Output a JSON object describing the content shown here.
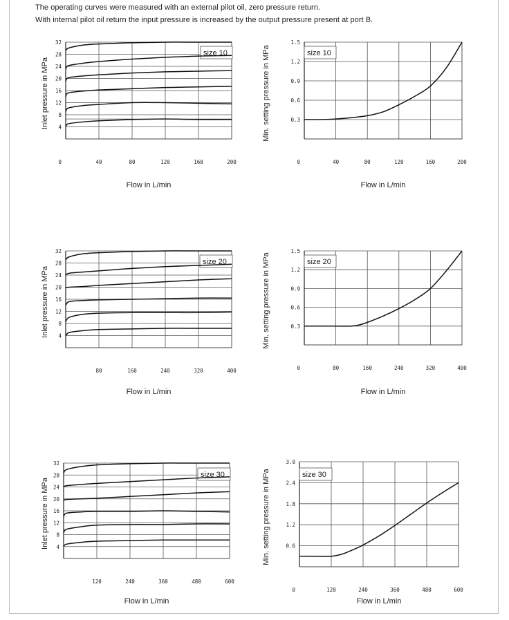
{
  "intro": {
    "line1": "The operating curves were measured with an external pilot oil, zero pressure return.",
    "line2": "With internal pilot oil return the input pressure is increased by the output pressure present at port B."
  },
  "chart_data": [
    {
      "type": "line",
      "title": "size 10",
      "xlabel": "Flow in L/min",
      "ylabel": "Inlet pressure in MPa",
      "xlim": [
        0,
        200
      ],
      "ylim": [
        0,
        32
      ],
      "xticks": [
        0,
        40,
        80,
        120,
        160,
        200
      ],
      "yticks": [
        0,
        4,
        8,
        12,
        16,
        20,
        24,
        28,
        32
      ],
      "xtick_labels": [
        "0",
        "40",
        "80",
        "120",
        "160",
        "200"
      ],
      "ytick_labels": [
        "0",
        "4",
        "8",
        "12",
        "16",
        "20",
        "24",
        "28",
        "32"
      ],
      "grid_x": [
        40,
        80,
        120,
        160
      ],
      "grid_y": [
        4,
        6.6,
        8,
        12,
        16,
        20,
        24,
        28,
        32
      ],
      "series": [
        {
          "x": [
            0,
            3,
            20,
            40,
            80,
            120,
            160,
            200
          ],
          "y": [
            29.0,
            30.0,
            31.0,
            31.4,
            31.8,
            32.0,
            32.0,
            32.0
          ]
        },
        {
          "x": [
            0,
            3,
            20,
            40,
            80,
            120,
            160,
            200
          ],
          "y": [
            23.0,
            24.2,
            25.0,
            25.6,
            26.4,
            27.0,
            27.4,
            27.6
          ]
        },
        {
          "x": [
            0,
            3,
            20,
            40,
            80,
            120,
            160,
            200
          ],
          "y": [
            19.0,
            20.2,
            20.8,
            21.2,
            21.8,
            22.2,
            22.4,
            22.6
          ]
        },
        {
          "x": [
            0,
            3,
            20,
            40,
            80,
            120,
            160,
            200
          ],
          "y": [
            14.0,
            15.2,
            15.8,
            16.2,
            16.6,
            17.0,
            17.2,
            17.4
          ]
        },
        {
          "x": [
            0,
            3,
            20,
            40,
            80,
            120,
            160,
            200
          ],
          "y": [
            9.0,
            10.2,
            11.0,
            11.4,
            12.0,
            12.0,
            11.8,
            11.6
          ]
        },
        {
          "x": [
            0,
            3,
            20,
            40,
            80,
            120,
            160,
            200
          ],
          "y": [
            4.0,
            5.0,
            5.6,
            6.0,
            6.4,
            6.6,
            6.4,
            6.4
          ]
        }
      ]
    },
    {
      "type": "line",
      "title": "size 10",
      "xlabel": "Flow in L/min",
      "ylabel": "Min. setting pressure in MPa",
      "xlim": [
        0,
        200
      ],
      "ylim": [
        0,
        1.5
      ],
      "xticks": [
        0,
        40,
        80,
        120,
        160,
        200
      ],
      "yticks": [
        0,
        0.3,
        0.6,
        0.9,
        1.2,
        1.5
      ],
      "xtick_labels": [
        "0",
        "40",
        "80",
        "120",
        "160",
        "200"
      ],
      "ytick_labels": [
        "0",
        "0.3",
        "0.6",
        "0.9",
        "1.2",
        "1.5"
      ],
      "grid_x": [
        40,
        80,
        120,
        160
      ],
      "grid_y": [
        0.3,
        0.6,
        0.9,
        1.2,
        1.5
      ],
      "series": [
        {
          "x": [
            0,
            20,
            40,
            60,
            80,
            100,
            120,
            140,
            160,
            180,
            200
          ],
          "y": [
            0.3,
            0.3,
            0.31,
            0.33,
            0.36,
            0.42,
            0.53,
            0.66,
            0.82,
            1.1,
            1.5
          ]
        }
      ]
    },
    {
      "type": "line",
      "title": "size 20",
      "xlabel": "Flow in L/min",
      "ylabel": "Inlet pressure in MPa",
      "xlim": [
        0,
        400
      ],
      "ylim": [
        0,
        32
      ],
      "xticks": [
        0,
        80,
        160,
        240,
        320,
        400
      ],
      "yticks": [
        4,
        8,
        12,
        16,
        20,
        24,
        28,
        32
      ],
      "xtick_labels": [
        "0",
        "80",
        "160",
        "240",
        "320",
        "400"
      ],
      "ytick_labels": [
        "4",
        "8",
        "12",
        "16",
        "20",
        "24",
        "28",
        "32"
      ],
      "grid_x": [
        80,
        160,
        240,
        320
      ],
      "grid_y": [
        4,
        8,
        12,
        16,
        20,
        24,
        28,
        32
      ],
      "series": [
        {
          "x": [
            0,
            8,
            40,
            80,
            160,
            240,
            320,
            400
          ],
          "y": [
            29.0,
            30.0,
            31.0,
            31.4,
            31.8,
            32.0,
            32.0,
            32.0
          ]
        },
        {
          "x": [
            0,
            8,
            40,
            80,
            160,
            240,
            320,
            400
          ],
          "y": [
            24.0,
            24.6,
            25.0,
            25.4,
            26.2,
            26.8,
            27.2,
            27.6
          ]
        },
        {
          "x": [
            0,
            8,
            40,
            80,
            160,
            240,
            320,
            400
          ],
          "y": [
            19.8,
            20.0,
            20.2,
            20.6,
            21.2,
            21.8,
            22.4,
            22.8
          ]
        },
        {
          "x": [
            0,
            8,
            40,
            80,
            160,
            240,
            320,
            400
          ],
          "y": [
            14.0,
            15.2,
            15.6,
            15.8,
            16.0,
            16.2,
            16.4,
            16.4
          ]
        },
        {
          "x": [
            0,
            8,
            40,
            80,
            160,
            240,
            320,
            400
          ],
          "y": [
            8.6,
            10.0,
            11.0,
            11.4,
            11.6,
            11.6,
            11.6,
            11.8
          ]
        },
        {
          "x": [
            0,
            8,
            40,
            80,
            160,
            240,
            320,
            400
          ],
          "y": [
            3.8,
            5.0,
            5.6,
            6.0,
            6.2,
            6.4,
            6.4,
            6.4
          ]
        }
      ]
    },
    {
      "type": "line",
      "title": "size 20",
      "xlabel": "Flow in L/min",
      "ylabel": "Min. setting pressure in MPa",
      "xlim": [
        0,
        400
      ],
      "ylim": [
        0,
        1.5
      ],
      "xticks": [
        0,
        80,
        160,
        240,
        320,
        400
      ],
      "yticks": [
        0,
        0.3,
        0.6,
        0.9,
        1.2,
        1.5
      ],
      "xtick_labels": [
        "0",
        "80",
        "160",
        "240",
        "320",
        "400"
      ],
      "ytick_labels": [
        "0",
        "0.3",
        "0.6",
        "0.9",
        "1.2",
        "1.5"
      ],
      "grid_x": [
        80,
        160,
        240,
        320
      ],
      "grid_y": [
        0.3,
        0.6,
        0.9,
        1.2,
        1.5
      ],
      "series": [
        {
          "x": [
            0,
            40,
            80,
            120,
            140,
            160,
            200,
            240,
            280,
            320,
            360,
            400
          ],
          "y": [
            0.3,
            0.3,
            0.3,
            0.3,
            0.32,
            0.36,
            0.46,
            0.58,
            0.72,
            0.9,
            1.18,
            1.5
          ]
        }
      ]
    },
    {
      "type": "line",
      "title": "size 30",
      "xlabel": "Flow in L/min",
      "ylabel": "Inlet pressure in MPa",
      "xlim": [
        0,
        600
      ],
      "ylim": [
        0,
        32
      ],
      "xticks": [
        0,
        120,
        240,
        360,
        480,
        600
      ],
      "yticks": [
        4,
        8,
        12,
        16,
        20,
        24,
        28,
        32
      ],
      "xtick_labels": [
        "0",
        "120",
        "240",
        "360",
        "480",
        "600"
      ],
      "ytick_labels": [
        "4",
        "8",
        "12",
        "16",
        "20",
        "24",
        "28",
        "32"
      ],
      "grid_x": [
        120,
        240,
        360,
        480
      ],
      "grid_y": [
        4,
        8,
        12,
        16,
        20,
        24,
        28,
        32
      ],
      "series": [
        {
          "x": [
            0,
            10,
            60,
            120,
            240,
            360,
            480,
            600
          ],
          "y": [
            28.6,
            29.8,
            30.8,
            31.4,
            31.8,
            32.0,
            32.0,
            32.0
          ]
        },
        {
          "x": [
            0,
            10,
            60,
            120,
            240,
            360,
            480,
            600
          ],
          "y": [
            24.0,
            24.4,
            24.8,
            25.2,
            25.8,
            26.4,
            27.0,
            27.4
          ]
        },
        {
          "x": [
            0,
            10,
            60,
            120,
            240,
            360,
            480,
            600
          ],
          "y": [
            19.4,
            19.8,
            20.0,
            20.2,
            20.8,
            21.4,
            22.0,
            22.4
          ]
        },
        {
          "x": [
            0,
            10,
            60,
            120,
            240,
            360,
            480,
            600
          ],
          "y": [
            14.0,
            15.2,
            15.6,
            15.8,
            15.8,
            16.0,
            15.8,
            15.6
          ]
        },
        {
          "x": [
            0,
            10,
            60,
            120,
            240,
            360,
            480,
            600
          ],
          "y": [
            8.6,
            9.8,
            10.6,
            11.2,
            11.4,
            11.4,
            11.6,
            11.6
          ]
        },
        {
          "x": [
            0,
            10,
            60,
            120,
            240,
            360,
            480,
            600
          ],
          "y": [
            4.0,
            4.8,
            5.4,
            5.8,
            6.0,
            6.2,
            6.2,
            6.2
          ]
        }
      ]
    },
    {
      "type": "line",
      "title": "size 30",
      "xlabel": "Flow in L/min",
      "ylabel": "Min. setting pressure in MPa",
      "xlim": [
        0,
        600
      ],
      "ylim": [
        0,
        3.0
      ],
      "xticks": [
        0,
        120,
        240,
        360,
        480,
        600
      ],
      "yticks": [
        0,
        0.6,
        1.2,
        1.8,
        2.4,
        3.0
      ],
      "xtick_labels": [
        "0",
        "120",
        "240",
        "360",
        "480",
        "600"
      ],
      "ytick_labels": [
        "0",
        "0.6",
        "1.2",
        "1.8",
        "2.4",
        "3.0"
      ],
      "grid_x": [
        120,
        240,
        360,
        480
      ],
      "grid_y": [
        0.6,
        1.2,
        1.8,
        2.4,
        3.0
      ],
      "series": [
        {
          "x": [
            0,
            60,
            120,
            160,
            200,
            240,
            300,
            360,
            420,
            480,
            540,
            600
          ],
          "y": [
            0.3,
            0.3,
            0.3,
            0.36,
            0.48,
            0.62,
            0.88,
            1.18,
            1.5,
            1.82,
            2.12,
            2.4
          ]
        }
      ]
    }
  ]
}
